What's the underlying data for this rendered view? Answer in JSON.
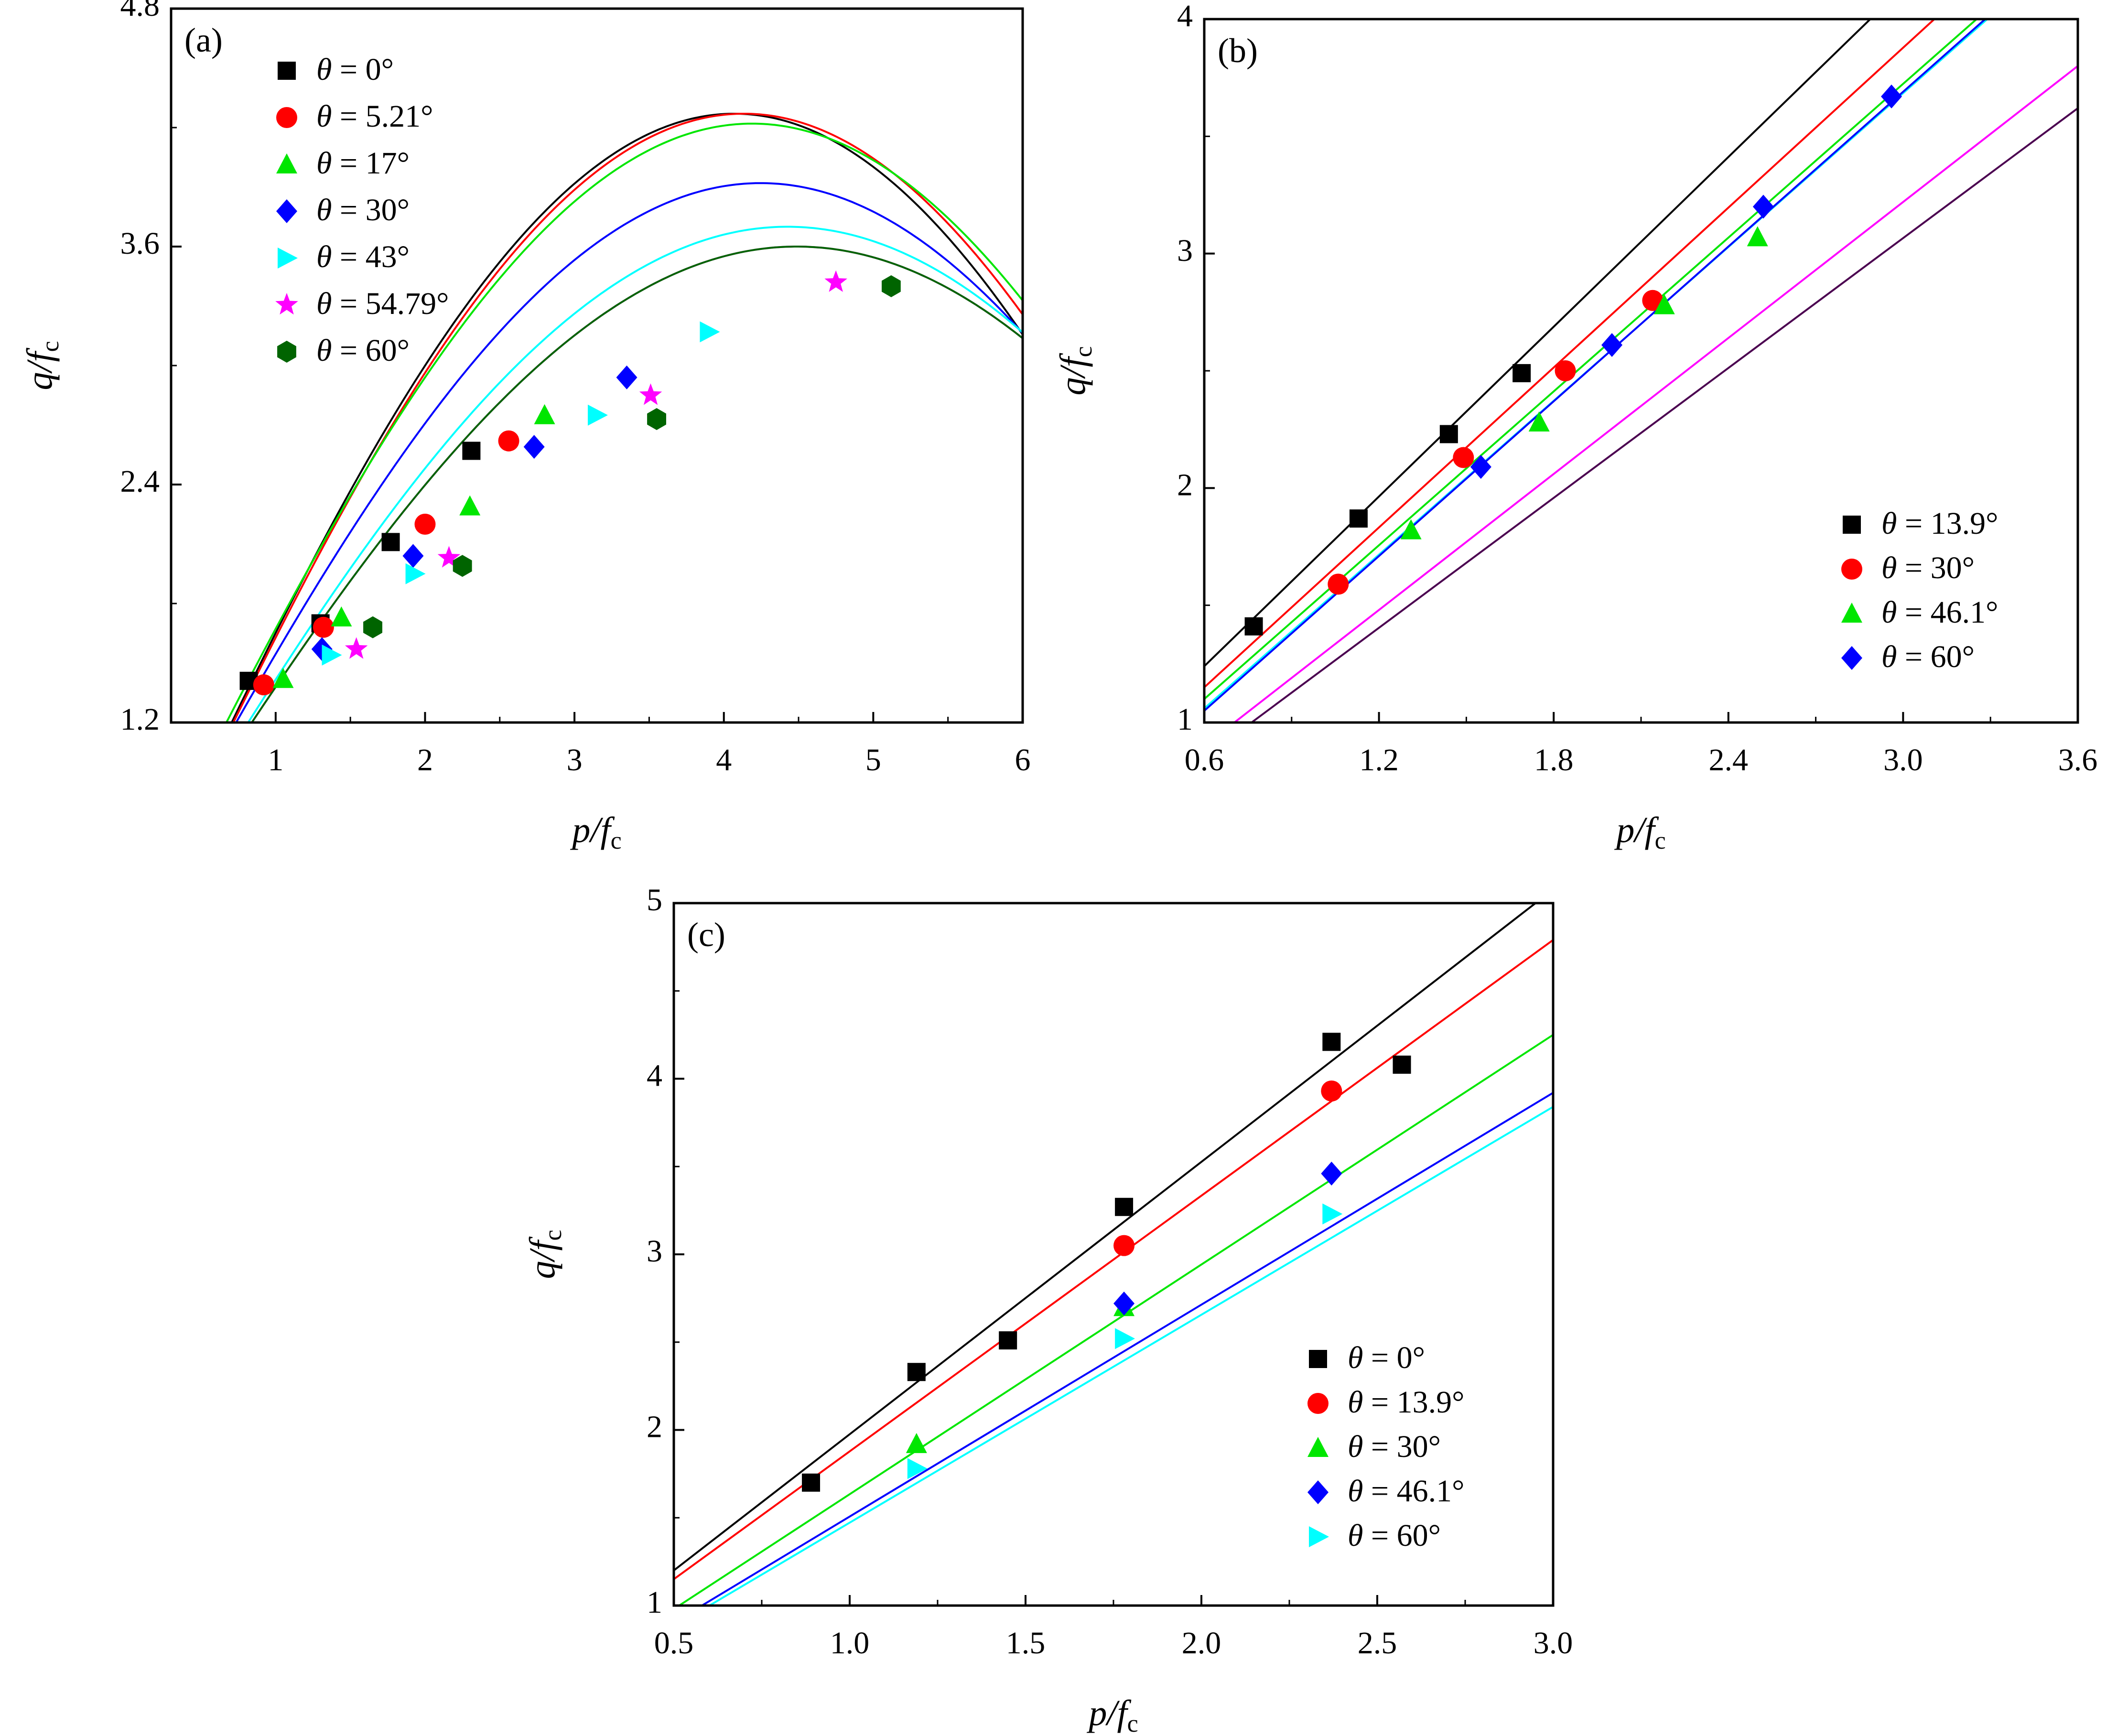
{
  "chart_data": [
    {
      "panel": "(a)",
      "type": "scatter",
      "xlabel": "p/fc",
      "ylabel": "q/fc",
      "xlim": [
        0.3,
        6
      ],
      "ylim": [
        1.2,
        4.8
      ],
      "xticks": [
        "1",
        "2",
        "3",
        "4",
        "5",
        "6"
      ],
      "yticks": [
        "1.2",
        "2.4",
        "3.6",
        "4.8"
      ],
      "legend_position": "top-left",
      "series": [
        {
          "name": "θ = 0°",
          "color": "#000000",
          "marker": "square",
          "points": [
            [
              0.82,
              1.41
            ],
            [
              1.3,
              1.7
            ],
            [
              1.77,
              2.11
            ],
            [
              2.31,
              2.57
            ]
          ],
          "fit": {
            "A": 4.2,
            "B": 0.386,
            "C": 0.07
          }
        },
        {
          "name": "θ = 5.21°",
          "color": "#ff0000",
          "marker": "circle",
          "points": [
            [
              0.92,
              1.39
            ],
            [
              1.32,
              1.68
            ],
            [
              2.0,
              2.2
            ],
            [
              2.56,
              2.62
            ]
          ],
          "fit": {
            "A": 4.2,
            "B": 0.38,
            "C": 0.07
          }
        },
        {
          "name": "θ = 17°",
          "color": "#00e600",
          "marker": "triangle-up",
          "points": [
            [
              1.05,
              1.42
            ],
            [
              1.44,
              1.73
            ],
            [
              2.3,
              2.29
            ],
            [
              2.8,
              2.75
            ]
          ],
          "fit": {
            "A": 4.02,
            "B": 0.375,
            "C": 0.2
          }
        },
        {
          "name": "θ = 30°",
          "color": "#0000ff",
          "marker": "diamond",
          "points": [
            [
              1.31,
              1.57
            ],
            [
              1.92,
              2.04
            ],
            [
              2.73,
              2.59
            ],
            [
              3.35,
              2.94
            ]
          ],
          "fit": {
            "A": 3.72,
            "B": 0.37,
            "C": 0.2
          }
        },
        {
          "name": "θ = 43°",
          "color": "#00ffff",
          "marker": "triangle-right",
          "points": [
            [
              1.37,
              1.54
            ],
            [
              1.93,
              1.95
            ],
            [
              3.15,
              2.75
            ],
            [
              3.9,
              3.17
            ]
          ],
          "fit": {
            "A": 3.5,
            "B": 0.355,
            "C": 0.2
          }
        },
        {
          "name": "θ = 54.79°",
          "color": "#ff00ff",
          "marker": "star",
          "points": [
            [
              1.54,
              1.57
            ],
            [
              2.16,
              2.03
            ],
            [
              3.51,
              2.85
            ],
            [
              4.75,
              3.42
            ]
          ],
          "fit": {
            "A": 3.38,
            "B": 0.35,
            "C": 0.22
          }
        },
        {
          "name": "θ = 60°",
          "color": "#006400",
          "marker": "hexagon",
          "points": [
            [
              1.65,
              1.68
            ],
            [
              2.25,
              1.99
            ],
            [
              3.55,
              2.73
            ],
            [
              5.12,
              3.4
            ]
          ],
          "fit": {
            "A": 3.38,
            "B": 0.35,
            "C": 0.22
          }
        }
      ]
    },
    {
      "panel": "(b)",
      "type": "scatter",
      "xlabel": "p/fc",
      "ylabel": "q/fc",
      "xlim": [
        0.6,
        3.6
      ],
      "ylim": [
        1,
        4
      ],
      "xticks": [
        "0.6",
        "1.2",
        "1.8",
        "2.4",
        "3.0",
        "3.6"
      ],
      "yticks": [
        "1",
        "2",
        "3",
        "4"
      ],
      "legend_position": "bottom-right",
      "series": [
        {
          "name": "θ = 13.9°",
          "color": "#000000",
          "marker": "square",
          "points": [
            [
              0.77,
              1.41
            ],
            [
              1.13,
              1.87
            ],
            [
              1.44,
              2.23
            ],
            [
              1.69,
              2.49
            ]
          ]
        },
        {
          "name": "θ = 30°",
          "color": "#ff0000",
          "marker": "circle",
          "points": [
            [
              1.06,
              1.59
            ],
            [
              1.49,
              2.13
            ],
            [
              1.84,
              2.5
            ],
            [
              2.14,
              2.8
            ]
          ]
        },
        {
          "name": "θ = 46.1°",
          "color": "#00e600",
          "marker": "triangle-up",
          "points": [
            [
              1.31,
              1.82
            ],
            [
              1.75,
              2.28
            ],
            [
              2.18,
              2.78
            ],
            [
              2.5,
              3.07
            ]
          ]
        },
        {
          "name": "θ = 60°",
          "color": "#0000ff",
          "marker": "diamond",
          "points": [
            [
              1.55,
              2.09
            ],
            [
              2.0,
              2.61
            ],
            [
              2.52,
              3.2
            ],
            [
              2.96,
              3.67
            ]
          ]
        }
      ],
      "fit_lines": [
        {
          "color": "#000000",
          "from": [
            0.6,
            1.24
          ],
          "to": [
            3.6,
            4.86
          ]
        },
        {
          "color": "#ff0000",
          "from": [
            0.6,
            1.15
          ],
          "to": [
            3.6,
            4.56
          ]
        },
        {
          "color": "#00e600",
          "from": [
            0.6,
            1.1
          ],
          "to": [
            3.6,
            4.38
          ]
        },
        {
          "color": "#00ffff",
          "from": [
            0.6,
            1.06
          ],
          "to": [
            3.6,
            4.34
          ]
        },
        {
          "color": "#0000ff",
          "from": [
            0.6,
            1.05
          ],
          "to": [
            3.6,
            4.35
          ]
        },
        {
          "color": "#ff00ff",
          "from": [
            0.6,
            0.9
          ],
          "to": [
            3.6,
            3.8
          ]
        },
        {
          "color": "#4b0050",
          "from": [
            0.6,
            0.85
          ],
          "to": [
            3.6,
            3.62
          ]
        }
      ]
    },
    {
      "panel": "(c)",
      "type": "scatter",
      "xlabel": "p/fc",
      "ylabel": "q/fc",
      "xlim": [
        0.5,
        3.0
      ],
      "ylim": [
        1,
        5
      ],
      "xticks": [
        "0.5",
        "1.0",
        "1.5",
        "2.0",
        "2.5",
        "3.0"
      ],
      "yticks": [
        "1",
        "2",
        "3",
        "4",
        "5"
      ],
      "legend_position": "bottom-right",
      "series": [
        {
          "name": "θ = 0°",
          "color": "#000000",
          "marker": "square",
          "points": [
            [
              0.89,
              1.7
            ],
            [
              1.19,
              2.33
            ],
            [
              1.45,
              2.51
            ],
            [
              1.78,
              3.27
            ],
            [
              2.37,
              4.21
            ],
            [
              2.57,
              4.08
            ]
          ]
        },
        {
          "name": "θ = 13.9°",
          "color": "#ff0000",
          "marker": "circle",
          "points": [
            [
              1.78,
              3.05
            ],
            [
              2.37,
              3.93
            ]
          ]
        },
        {
          "name": "θ = 30°",
          "color": "#00e600",
          "marker": "triangle-up",
          "points": [
            [
              1.19,
              1.92
            ],
            [
              1.78,
              2.7
            ]
          ]
        },
        {
          "name": "θ = 46.1°",
          "color": "#0000ff",
          "marker": "diamond",
          "points": [
            [
              1.78,
              2.72
            ],
            [
              2.37,
              3.46
            ]
          ]
        },
        {
          "name": "θ = 60°",
          "color": "#00ffff",
          "marker": "triangle-right",
          "points": [
            [
              1.19,
              1.78
            ],
            [
              1.78,
              2.52
            ],
            [
              2.37,
              3.23
            ]
          ]
        }
      ],
      "fit_lines": [
        {
          "color": "#000000",
          "from": [
            0.5,
            1.2
          ],
          "to": [
            2.95,
            5.0
          ]
        },
        {
          "color": "#ff0000",
          "from": [
            0.5,
            1.15
          ],
          "to": [
            3.0,
            4.79
          ]
        },
        {
          "color": "#00e600",
          "from": [
            0.5,
            0.98
          ],
          "to": [
            3.0,
            4.25
          ]
        },
        {
          "color": "#0000ff",
          "from": [
            0.58,
            1.0
          ],
          "to": [
            3.0,
            3.92
          ]
        },
        {
          "color": "#00ffff",
          "from": [
            0.5,
            0.88
          ],
          "to": [
            3.0,
            3.84
          ]
        }
      ]
    }
  ]
}
